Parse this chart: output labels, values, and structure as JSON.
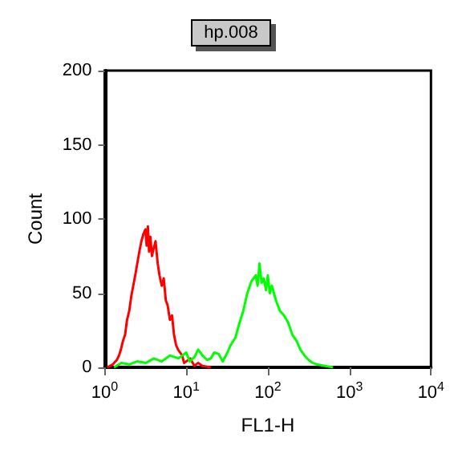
{
  "chart_data": {
    "type": "line",
    "title": "hp.008",
    "xlabel": "FL1-H",
    "ylabel": "Count",
    "log": "x",
    "xlim": [
      1,
      10000
    ],
    "ylim": [
      0,
      200
    ],
    "xticks": [
      {
        "value": 1,
        "label": "10$^{0}$"
      },
      {
        "value": 10,
        "label": "10$^{1}$"
      },
      {
        "value": 100,
        "label": "10$^{2}$"
      },
      {
        "value": 1000,
        "label": "10$^{3}$"
      },
      {
        "value": 10000,
        "label": "10$^{4}$"
      }
    ],
    "yticks": [
      0,
      50,
      100,
      150,
      200
    ],
    "grid": false,
    "marker": "none",
    "line_style": "solid",
    "series": [
      {
        "color": "#ff0000",
        "x": [
          1.07,
          1.26,
          1.41,
          1.5,
          1.58,
          1.68,
          1.78,
          1.88,
          2.0,
          2.12,
          2.24,
          2.37,
          2.51,
          2.66,
          2.82,
          2.99,
          3.16,
          3.27,
          3.39,
          3.5,
          3.63,
          3.8,
          3.98,
          4.2,
          4.47,
          4.7,
          5.01,
          5.3,
          5.62,
          5.9,
          6.31,
          6.7,
          7.08,
          7.5,
          7.94,
          8.4,
          8.91,
          9.4,
          10,
          11.2,
          12.6,
          14,
          15.8,
          20
        ],
        "values": [
          0,
          2,
          5,
          8,
          12,
          18,
          22,
          32,
          38,
          48,
          55,
          62,
          70,
          78,
          85,
          90,
          93,
          82,
          95,
          78,
          88,
          75,
          80,
          85,
          70,
          62,
          55,
          60,
          45,
          42,
          32,
          35,
          22,
          15,
          12,
          10,
          8,
          3,
          4,
          6,
          1,
          3,
          1,
          0
        ]
      },
      {
        "color": "#00ff00",
        "x": [
          1.3,
          1.6,
          2,
          2.5,
          3.2,
          4,
          5,
          6.3,
          8,
          10,
          11,
          12.6,
          14,
          15.8,
          18,
          20,
          22,
          25,
          28,
          32,
          35,
          40,
          45,
          50,
          56,
          63,
          71,
          75,
          79,
          84,
          89,
          95,
          100,
          106,
          112,
          126,
          141,
          158,
          178,
          200,
          224,
          251,
          282,
          316,
          355,
          398,
          501,
          631
        ],
        "values": [
          0,
          3,
          2,
          4,
          3,
          6,
          4,
          8,
          6,
          10,
          4,
          7,
          12,
          8,
          5,
          6,
          10,
          9,
          4,
          10,
          15,
          20,
          30,
          38,
          50,
          58,
          62,
          55,
          70,
          57,
          60,
          52,
          62,
          50,
          55,
          45,
          38,
          35,
          30,
          22,
          18,
          12,
          8,
          5,
          3,
          2,
          1,
          0
        ]
      }
    ]
  }
}
